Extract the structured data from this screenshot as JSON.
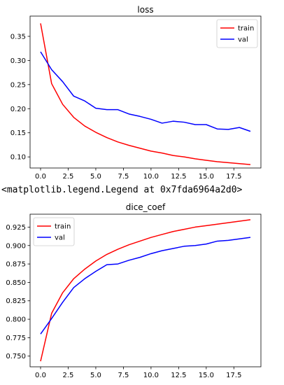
{
  "output_text": "<matplotlib.legend.Legend at 0x7fda6964a2d0>",
  "colors": {
    "train": "#ff0000",
    "val": "#0000ff"
  },
  "chart_data": [
    {
      "type": "line",
      "title": "loss",
      "xlabel": "",
      "ylabel": "",
      "x": [
        0,
        1,
        2,
        3,
        4,
        5,
        6,
        7,
        8,
        9,
        10,
        11,
        12,
        13,
        14,
        15,
        16,
        17,
        18,
        19
      ],
      "xlim": [
        -0.95,
        19.95
      ],
      "ylim": [
        0.077,
        0.392
      ],
      "xticks": [
        0.0,
        2.5,
        5.0,
        7.5,
        10.0,
        12.5,
        15.0,
        17.5
      ],
      "xtick_labels": [
        "0.0",
        "2.5",
        "5.0",
        "7.5",
        "10.0",
        "12.5",
        "15.0",
        "17.5"
      ],
      "yticks": [
        0.1,
        0.15,
        0.2,
        0.25,
        0.3,
        0.35
      ],
      "ytick_labels": [
        "0.10",
        "0.15",
        "0.20",
        "0.25",
        "0.30",
        "0.35"
      ],
      "grid": false,
      "legend": "upper right",
      "series": [
        {
          "name": "train",
          "color": "#ff0000",
          "values": [
            0.377,
            0.252,
            0.209,
            0.182,
            0.164,
            0.151,
            0.14,
            0.131,
            0.124,
            0.118,
            0.112,
            0.108,
            0.103,
            0.1,
            0.096,
            0.093,
            0.09,
            0.088,
            0.086,
            0.084
          ]
        },
        {
          "name": "val",
          "color": "#0000ff",
          "values": [
            0.318,
            0.281,
            0.256,
            0.226,
            0.216,
            0.201,
            0.198,
            0.198,
            0.189,
            0.184,
            0.178,
            0.17,
            0.174,
            0.172,
            0.167,
            0.167,
            0.158,
            0.157,
            0.161,
            0.153
          ]
        }
      ]
    },
    {
      "type": "line",
      "title": "dice_coef",
      "xlabel": "",
      "ylabel": "",
      "x": [
        0,
        1,
        2,
        3,
        4,
        5,
        6,
        7,
        8,
        9,
        10,
        11,
        12,
        13,
        14,
        15,
        16,
        17,
        18,
        19
      ],
      "xlim": [
        -0.95,
        19.95
      ],
      "ylim": [
        0.7355,
        0.9425
      ],
      "xticks": [
        0.0,
        2.5,
        5.0,
        7.5,
        10.0,
        12.5,
        15.0,
        17.5
      ],
      "xtick_labels": [
        "0.0",
        "2.5",
        "5.0",
        "7.5",
        "10.0",
        "12.5",
        "15.0",
        "17.5"
      ],
      "yticks": [
        0.75,
        0.775,
        0.8,
        0.825,
        0.85,
        0.875,
        0.9,
        0.925
      ],
      "ytick_labels": [
        "0.750",
        "0.775",
        "0.800",
        "0.825",
        "0.850",
        "0.875",
        "0.900",
        "0.925"
      ],
      "grid": false,
      "legend": "upper left",
      "series": [
        {
          "name": "train",
          "color": "#ff0000",
          "values": [
            0.743,
            0.808,
            0.836,
            0.855,
            0.868,
            0.879,
            0.888,
            0.895,
            0.901,
            0.906,
            0.911,
            0.915,
            0.919,
            0.922,
            0.925,
            0.927,
            0.929,
            0.931,
            0.933,
            0.935
          ]
        },
        {
          "name": "val",
          "color": "#0000ff",
          "values": [
            0.78,
            0.801,
            0.823,
            0.843,
            0.855,
            0.865,
            0.874,
            0.875,
            0.88,
            0.884,
            0.889,
            0.893,
            0.896,
            0.899,
            0.9,
            0.902,
            0.906,
            0.907,
            0.909,
            0.911
          ]
        }
      ]
    }
  ]
}
